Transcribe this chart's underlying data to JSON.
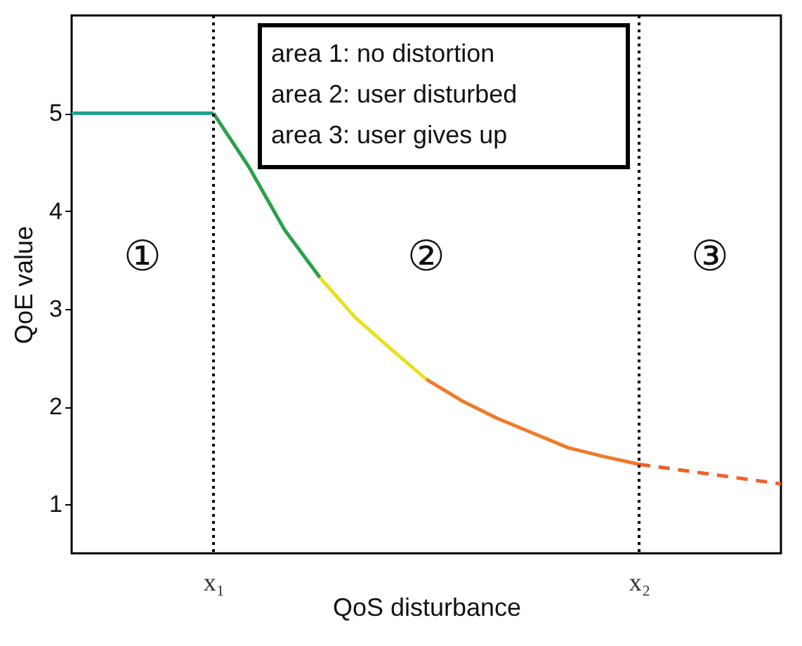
{
  "chart_data": {
    "type": "line",
    "xlabel": "QoS disturbance",
    "ylabel": "QoE value",
    "categories": [
      null,
      null,
      null,
      null,
      "x₁",
      null,
      null,
      null,
      null,
      null,
      null,
      null,
      null,
      null,
      null,
      null,
      "x₂",
      null,
      null,
      null,
      null
    ],
    "ylim": [
      0.5,
      6
    ],
    "yticks": [
      1,
      2,
      3,
      4,
      5
    ],
    "grid": false,
    "series": [
      {
        "color": "#1aa08a",
        "values": [
          5,
          5,
          5,
          5,
          5,
          null,
          null,
          null,
          null,
          null,
          null,
          null,
          null,
          null,
          null,
          null,
          null,
          null,
          null,
          null,
          null
        ]
      },
      {
        "color": "#2aa04a",
        "values": [
          null,
          null,
          null,
          null,
          5,
          4.45,
          3.81,
          3.32,
          null,
          null,
          null,
          null,
          null,
          null,
          null,
          null,
          null,
          null,
          null,
          null,
          null
        ]
      },
      {
        "color": "#e8e020",
        "values": [
          null,
          null,
          null,
          null,
          null,
          null,
          null,
          3.32,
          2.91,
          2.59,
          2.28,
          null,
          null,
          null,
          null,
          null,
          null,
          null,
          null,
          null,
          null
        ]
      },
      {
        "color": "#f07a28",
        "values": [
          null,
          null,
          null,
          null,
          null,
          null,
          null,
          null,
          null,
          null,
          2.28,
          2.06,
          1.88,
          1.73,
          1.58,
          1.49,
          1.41,
          null,
          null,
          null,
          null
        ]
      },
      {
        "color": "#f0602a",
        "values": [
          null,
          null,
          null,
          null,
          null,
          null,
          null,
          null,
          null,
          null,
          null,
          null,
          null,
          null,
          null,
          null,
          1.41,
          1.36,
          1.31,
          1.26,
          1.21
        ],
        "line_style": "dashed"
      }
    ],
    "ref_lines": [
      {
        "axis": "x",
        "value": "x₁",
        "color": "#000000",
        "line_style": "dotted"
      },
      {
        "axis": "x",
        "value": "x₂",
        "color": "#000000",
        "line_style": "dotted"
      }
    ],
    "annotations": [
      "area 1: no distortion",
      "area 2: user disturbed",
      "area 3: user gives up",
      "①",
      "②",
      "③"
    ]
  }
}
